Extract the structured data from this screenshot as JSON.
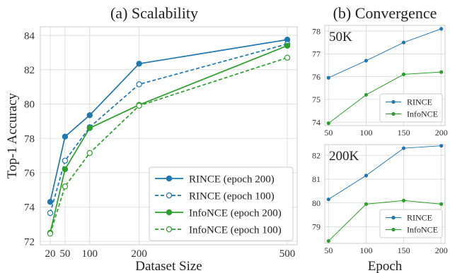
{
  "chart_data": [
    {
      "type": "line",
      "title": "(a) Scalability",
      "xlabel": "Dataset Size",
      "ylabel": "Top-1 Accuracy",
      "x": [
        20,
        50,
        100,
        200,
        500
      ],
      "xticks": [
        20,
        50,
        100,
        200,
        500
      ],
      "xlim": [
        0,
        520
      ],
      "ylim": [
        71.8,
        84.5
      ],
      "yticks": [
        72,
        74,
        76,
        78,
        80,
        82,
        84
      ],
      "grid": true,
      "legend": "bottom-right",
      "series": [
        {
          "name": "RINCE (epoch 200)",
          "values": [
            74.3,
            78.1,
            79.35,
            82.35,
            83.75
          ],
          "color": "#1f77b4",
          "dashed": false,
          "filled": true
        },
        {
          "name": "RINCE (epoch 100)",
          "values": [
            73.65,
            76.7,
            78.65,
            81.15,
            83.5
          ],
          "color": "#1f77b4",
          "dashed": true,
          "filled": false
        },
        {
          "name": "InfoNCE (epoch 200)",
          "values": [
            72.5,
            76.2,
            78.6,
            79.95,
            83.4
          ],
          "color": "#2ca02c",
          "dashed": false,
          "filled": true
        },
        {
          "name": "InfoNCE (epoch 100)",
          "values": [
            72.45,
            75.2,
            77.15,
            79.9,
            82.7
          ],
          "color": "#2ca02c",
          "dashed": true,
          "filled": false
        }
      ]
    },
    {
      "type": "line",
      "title": "(b) Convergence",
      "annotation": "50K",
      "x": [
        50,
        100,
        150,
        200
      ],
      "xticks": [
        50,
        100,
        150,
        200
      ],
      "xlim": [
        45,
        205
      ],
      "ylim": [
        73.85,
        78.25
      ],
      "yticks": [
        74,
        75,
        76,
        77,
        78
      ],
      "grid": true,
      "legend": "lower-right",
      "series": [
        {
          "name": "RINCE",
          "values": [
            75.95,
            76.7,
            77.5,
            78.1
          ],
          "color": "#1f77b4"
        },
        {
          "name": "InfoNCE",
          "values": [
            73.95,
            75.2,
            76.1,
            76.2
          ],
          "color": "#2ca02c"
        }
      ]
    },
    {
      "type": "line",
      "annotation": "200K",
      "xlabel": "Epoch",
      "x": [
        50,
        100,
        150,
        200
      ],
      "xticks": [
        50,
        100,
        150,
        200
      ],
      "xlim": [
        45,
        205
      ],
      "ylim": [
        78.3,
        82.45
      ],
      "yticks": [
        79,
        80,
        81,
        82
      ],
      "grid": true,
      "legend": "lower-right",
      "series": [
        {
          "name": "RINCE",
          "values": [
            80.15,
            81.15,
            82.3,
            82.4
          ],
          "color": "#1f77b4"
        },
        {
          "name": "InfoNCE",
          "values": [
            78.4,
            79.95,
            80.1,
            79.95
          ],
          "color": "#2ca02c"
        }
      ]
    }
  ]
}
